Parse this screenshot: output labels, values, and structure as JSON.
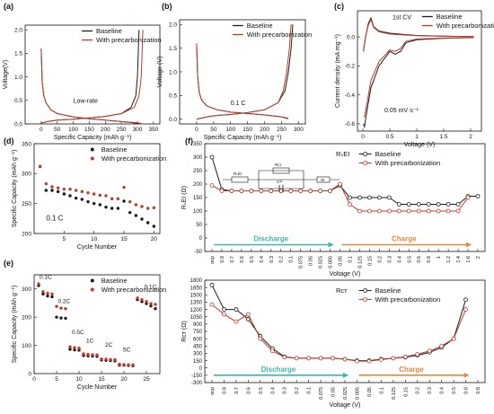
{
  "colors": {
    "baseline": "#1a1a1a",
    "precarb": "#c0392b",
    "discharge": "#3fb5a8",
    "charge": "#e08a3c"
  },
  "chart_data": [
    {
      "id": "a",
      "panel_label": "(a)",
      "type": "line",
      "xlabel": "Specific Capacity (mAh g⁻¹)",
      "ylabel": "Voltage(V)",
      "xlim": [
        -50,
        370
      ],
      "ylim": [
        0,
        2.1
      ],
      "xticks": [
        0,
        50,
        100,
        150,
        200,
        250,
        300,
        350
      ],
      "yticks": [
        0.0,
        0.5,
        1.0,
        1.5,
        2.0
      ],
      "annotation": "Low-rate",
      "legend_position": "top-right",
      "series": [
        {
          "name": "Baseline",
          "color_key": "baseline",
          "x": [
            0,
            3,
            8,
            15,
            30,
            50,
            100,
            150,
            200,
            250,
            280,
            292,
            300,
            303
          ],
          "y": [
            1.6,
            0.9,
            0.6,
            0.45,
            0.3,
            0.22,
            0.15,
            0.11,
            0.08,
            0.05,
            0.03,
            0.02,
            0.01,
            0.0
          ]
        },
        {
          "name": "Baseline",
          "color_key": "baseline",
          "x": [
            0,
            20,
            50,
            100,
            150,
            200,
            250,
            280,
            295,
            300,
            303,
            305
          ],
          "y": [
            0.02,
            0.05,
            0.08,
            0.1,
            0.13,
            0.16,
            0.22,
            0.35,
            0.6,
            1.0,
            1.6,
            2.0
          ]
        },
        {
          "name": "With precarbonization",
          "color_key": "precarb",
          "x": [
            0,
            3,
            8,
            15,
            30,
            50,
            100,
            150,
            200,
            250,
            290,
            305,
            312,
            315
          ],
          "y": [
            1.6,
            0.9,
            0.6,
            0.45,
            0.3,
            0.22,
            0.15,
            0.11,
            0.08,
            0.05,
            0.03,
            0.02,
            0.01,
            0.0
          ]
        },
        {
          "name": "With precarbonization",
          "color_key": "precarb",
          "x": [
            0,
            20,
            50,
            100,
            150,
            200,
            250,
            290,
            305,
            312,
            315,
            317
          ],
          "y": [
            0.02,
            0.05,
            0.08,
            0.1,
            0.13,
            0.16,
            0.22,
            0.35,
            0.6,
            1.0,
            1.6,
            2.0
          ]
        }
      ]
    },
    {
      "id": "b",
      "panel_label": "(b)",
      "type": "line",
      "xlabel": "Specific Capacity (mAh g⁻¹)",
      "ylabel": "Voltage (V)",
      "xlim": [
        -50,
        320
      ],
      "ylim": [
        -0.1,
        2.1
      ],
      "xticks": [
        0,
        50,
        100,
        150,
        200,
        250,
        300
      ],
      "yticks": [
        0.0,
        0.5,
        1.0,
        1.5,
        2.0
      ],
      "annotation": "0.1 C",
      "legend_position": "top-right",
      "series": [
        {
          "name": "Baseline",
          "color_key": "baseline",
          "x": [
            0,
            3,
            8,
            15,
            30,
            60,
            100,
            150,
            200,
            250,
            268,
            270
          ],
          "y": [
            1.6,
            0.9,
            0.55,
            0.4,
            0.28,
            0.2,
            0.15,
            0.12,
            0.09,
            0.05,
            0.02,
            0.01
          ]
        },
        {
          "name": "Baseline",
          "color_key": "baseline",
          "x": [
            0,
            30,
            60,
            100,
            150,
            200,
            240,
            260,
            270,
            278,
            283
          ],
          "y": [
            0.0,
            0.05,
            0.08,
            0.1,
            0.14,
            0.2,
            0.35,
            0.6,
            1.0,
            1.5,
            2.0
          ]
        },
        {
          "name": "With precarbonization",
          "color_key": "precarb",
          "x": [
            0,
            3,
            8,
            15,
            30,
            60,
            100,
            150,
            200,
            250,
            262,
            265
          ],
          "y": [
            1.6,
            0.9,
            0.55,
            0.4,
            0.28,
            0.2,
            0.15,
            0.12,
            0.09,
            0.05,
            0.02,
            0.01
          ]
        },
        {
          "name": "With precarbonization",
          "color_key": "precarb",
          "x": [
            0,
            30,
            60,
            100,
            150,
            200,
            240,
            255,
            265,
            273,
            278
          ],
          "y": [
            0.0,
            0.05,
            0.08,
            0.1,
            0.14,
            0.2,
            0.35,
            0.6,
            1.0,
            1.5,
            2.0
          ]
        }
      ]
    },
    {
      "id": "c",
      "panel_label": "(c)",
      "type": "line",
      "xlabel": "Voltage (V)",
      "ylabel": "Current density (mA mg⁻¹)",
      "xlim": [
        -0.1,
        2.2
      ],
      "ylim": [
        -0.65,
        0.18
      ],
      "xticks": [
        0.0,
        0.5,
        1.0,
        1.5,
        2.0
      ],
      "yticks": [
        -0.6,
        -0.4,
        -0.2,
        0.0
      ],
      "annotations": [
        "1st CV",
        "0.05 mV·s⁻¹"
      ],
      "legend_position": "top-right",
      "series": [
        {
          "name": "Baseline",
          "color_key": "baseline",
          "x": [
            0.01,
            0.05,
            0.1,
            0.15,
            0.2,
            0.3,
            0.5,
            0.8,
            1.0,
            1.5,
            2.05,
            2.05,
            1.5,
            1.0,
            0.8,
            0.7,
            0.6,
            0.5,
            0.3,
            0.15,
            0.08,
            0.03,
            0.01
          ],
          "y": [
            -0.1,
            0.0,
            0.09,
            0.13,
            0.07,
            0.04,
            0.025,
            0.015,
            0.01,
            0.005,
            0.002,
            -0.005,
            -0.01,
            -0.02,
            -0.04,
            -0.1,
            -0.12,
            -0.1,
            -0.2,
            -0.35,
            -0.5,
            -0.62,
            -0.6
          ]
        },
        {
          "name": "With precarbonization",
          "color_key": "precarb",
          "x": [
            0.01,
            0.05,
            0.1,
            0.15,
            0.2,
            0.3,
            0.5,
            0.8,
            1.0,
            1.5,
            2.05,
            2.05,
            1.5,
            1.0,
            0.8,
            0.7,
            0.6,
            0.5,
            0.3,
            0.15,
            0.08,
            0.03,
            0.01
          ],
          "y": [
            -0.1,
            0.0,
            0.08,
            0.12,
            0.065,
            0.035,
            0.02,
            0.012,
            0.008,
            0.004,
            0.002,
            -0.004,
            -0.008,
            -0.015,
            -0.03,
            -0.08,
            -0.1,
            -0.09,
            -0.17,
            -0.3,
            -0.45,
            -0.55,
            -0.55
          ]
        }
      ]
    },
    {
      "id": "d",
      "panel_label": "(d)",
      "type": "scatter",
      "xlabel": "Cycle Number",
      "ylabel": "Specific Capacity (mAh g⁻¹)",
      "xlim": [
        0,
        21
      ],
      "ylim": [
        200,
        350
      ],
      "xticks": [
        5,
        10,
        15,
        20
      ],
      "yticks": [
        200,
        250,
        300,
        350
      ],
      "annotation": "0.1 C",
      "legend_position": "top-right",
      "series": [
        {
          "name": "Baseline",
          "color_key": "baseline",
          "x": [
            1,
            2,
            3,
            4,
            5,
            6,
            7,
            8,
            9,
            10,
            11,
            12,
            13,
            14,
            15,
            16,
            17,
            18,
            19,
            20
          ],
          "y": [
            312,
            272,
            272,
            270,
            266,
            263,
            259,
            257,
            253,
            250,
            248,
            244,
            242,
            242,
            254,
            235,
            230,
            224,
            218,
            212
          ]
        },
        {
          "name": "With precarbonization",
          "color_key": "precarb",
          "x": [
            1,
            2,
            3,
            4,
            5,
            6,
            7,
            8,
            9,
            10,
            11,
            12,
            13,
            14,
            15,
            16,
            17,
            18,
            19,
            20
          ],
          "y": [
            312,
            283,
            278,
            276,
            274,
            274,
            272,
            270,
            268,
            266,
            264,
            263,
            258,
            258,
            277,
            253,
            248,
            245,
            242,
            243
          ]
        }
      ]
    },
    {
      "id": "e",
      "panel_label": "(e)",
      "type": "scatter",
      "xlabel": "Cycle Number",
      "ylabel": "Specific Capacity (mAh g⁻¹)",
      "xlim": [
        0,
        28
      ],
      "ylim": [
        0,
        350
      ],
      "xticks": [
        0,
        5,
        10,
        15,
        20,
        25
      ],
      "yticks": [
        0,
        100,
        200,
        300
      ],
      "annotations": [
        "0.1C",
        "0.2C",
        "0.5C",
        "1C",
        "2C",
        "5C",
        "0.1C"
      ],
      "legend_position": "top-right",
      "series": [
        {
          "name": "Baseline",
          "color_key": "baseline",
          "x": [
            1,
            2,
            3,
            4,
            5,
            6,
            7,
            8,
            9,
            10,
            11,
            12,
            13,
            14,
            15,
            16,
            17,
            18,
            19,
            20,
            21,
            22,
            23,
            24,
            25,
            26,
            27
          ],
          "y": [
            312,
            282,
            275,
            272,
            200,
            197,
            196,
            86,
            84,
            83,
            64,
            63,
            62,
            61,
            48,
            47,
            46,
            45,
            30,
            30,
            29,
            28,
            262,
            255,
            248,
            240,
            230
          ]
        },
        {
          "name": "With precarbonization",
          "color_key": "precarb",
          "x": [
            1,
            2,
            3,
            4,
            5,
            6,
            7,
            8,
            9,
            10,
            11,
            12,
            13,
            14,
            15,
            16,
            17,
            18,
            19,
            20,
            21,
            22,
            23,
            24,
            25,
            26,
            27
          ],
          "y": [
            318,
            290,
            285,
            282,
            238,
            232,
            230,
            95,
            92,
            90,
            70,
            68,
            67,
            66,
            52,
            51,
            50,
            49,
            33,
            32,
            31,
            31,
            268,
            262,
            255,
            248,
            245
          ]
        }
      ]
    },
    {
      "id": "f1",
      "panel_label": "(f)",
      "type": "line",
      "title": "RₛEI",
      "xlabel": "Voltage (V)",
      "ylabel": "RₛEI (Ω)",
      "ylim": [
        -50,
        350
      ],
      "yticks": [
        -50,
        0,
        50,
        100,
        150,
        200,
        250,
        300,
        350
      ],
      "categories": [
        "ocp",
        "0.8",
        "0.7",
        "0.6",
        "0.5",
        "0.4",
        "0.3",
        "0.2",
        "0.1",
        "0.075",
        "0.05",
        "0.025",
        "0.005",
        "0.05",
        "0.1",
        "0.125",
        "0.15",
        "0.2",
        "0.3",
        "0.4",
        "0.5",
        "0.6",
        "0.8",
        "1",
        "1.2",
        "1.4",
        "1.6",
        "2"
      ],
      "regions": [
        {
          "label": "Discharge",
          "from": 0,
          "to": 12
        },
        {
          "label": "Charge",
          "from": 13,
          "to": 26
        }
      ],
      "series": [
        {
          "name": "Baseline",
          "color_key": "baseline",
          "values": [
            300,
            180,
            175,
            175,
            175,
            175,
            175,
            175,
            175,
            175,
            175,
            175,
            175,
            195,
            150,
            150,
            150,
            150,
            150,
            125,
            125,
            125,
            125,
            125,
            125,
            125,
            155,
            155
          ]
        },
        {
          "name": "With precarbonization",
          "color_key": "precarb",
          "values": [
            195,
            175,
            175,
            175,
            175,
            175,
            175,
            175,
            175,
            175,
            175,
            175,
            175,
            200,
            125,
            100,
            100,
            100,
            100,
            100,
            100,
            100,
            100,
            100,
            100,
            100,
            150,
            null
          ]
        }
      ]
    },
    {
      "id": "f2",
      "panel_label": "",
      "type": "line",
      "title": "Rᴄᴛ",
      "xlabel": "Voltage (V)",
      "ylabel": "Rᴄᴛ (Ω)",
      "ylim": [
        -300,
        1800
      ],
      "yticks": [
        -300,
        -150,
        0,
        150,
        300,
        450,
        600,
        750,
        900,
        1050,
        1200,
        1350,
        1500,
        1650,
        1800
      ],
      "categories": [
        "ocp",
        "0.8",
        "0.7",
        "0.6",
        "0.5",
        "0.4",
        "0.3",
        "0.2",
        "0.1",
        "0.075",
        "0.05",
        "0.025",
        "0.005",
        "0.05",
        "0.1",
        "0.125",
        "0.15",
        "0.2",
        "0.3",
        "0.4",
        "0.5",
        "0.6",
        "0.8"
      ],
      "regions": [
        {
          "label": "Discharge",
          "from": 0,
          "to": 11
        },
        {
          "label": "Charge",
          "from": 12,
          "to": 21
        }
      ],
      "series": [
        {
          "name": "Baseline",
          "color_key": "baseline",
          "values": [
            1700,
            1200,
            1200,
            1000,
            650,
            400,
            230,
            200,
            200,
            200,
            200,
            180,
            150,
            150,
            180,
            200,
            220,
            260,
            320,
            420,
            600,
            1400,
            null
          ]
        },
        {
          "name": "With precarbonization",
          "color_key": "precarb",
          "values": [
            1300,
            1100,
            950,
            1100,
            600,
            350,
            220,
            200,
            200,
            200,
            200,
            180,
            140,
            140,
            170,
            200,
            230,
            280,
            350,
            450,
            600,
            1200,
            null
          ]
        }
      ]
    }
  ],
  "inset_circuit": [
    "RₛEI",
    "Rᴄᴛ",
    "Cᵈᴸ",
    "W"
  ]
}
